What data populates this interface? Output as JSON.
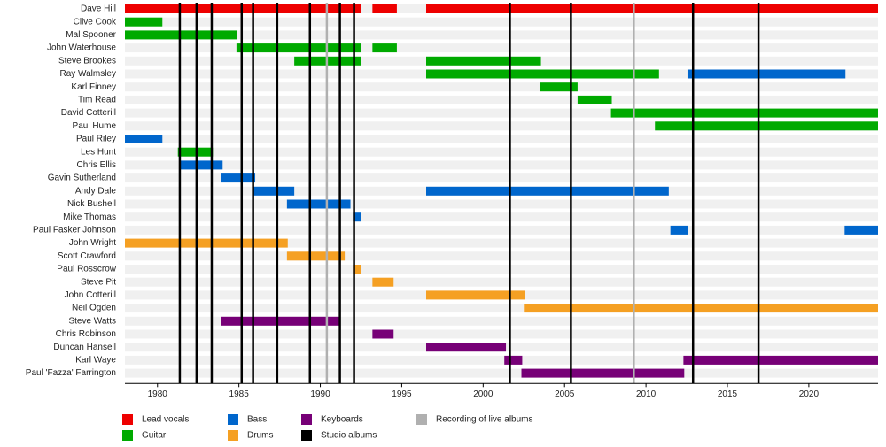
{
  "chart_data": {
    "type": "timeline",
    "xlim": [
      1978,
      2024.25
    ],
    "xticks": [
      1980,
      1985,
      1990,
      1995,
      2000,
      2005,
      2010,
      2015,
      2020
    ],
    "roles": [
      {
        "name": "Lead vocals",
        "color": "#ee0000"
      },
      {
        "name": "Guitar",
        "color": "#00aa00"
      },
      {
        "name": "Bass",
        "color": "#0066cc"
      },
      {
        "name": "Drums",
        "color": "#f5a023"
      },
      {
        "name": "Keyboards",
        "color": "#770077"
      }
    ],
    "events": [
      {
        "name": "Studio albums",
        "color": "#000000",
        "x": [
          1981.37,
          1982.4,
          1983.33,
          1985.17,
          1985.87,
          1987.35,
          1989.36,
          1991.2,
          1992.07,
          2001.64,
          2005.39,
          2012.89,
          2016.91
        ]
      },
      {
        "name": "Recording of live albums",
        "color": "#b0b0b0",
        "x": [
          1990.4,
          2009.25
        ]
      }
    ],
    "members": [
      {
        "name": "Dave Hill",
        "bars": [
          {
            "color": "#ee0000",
            "start": 1978,
            "end": 1992.5
          },
          {
            "color": "#ee0000",
            "start": 1993.2,
            "end": 1994.7
          },
          {
            "color": "#ee0000",
            "start": 1996.5,
            "end": 2024.25
          }
        ]
      },
      {
        "name": "Clive Cook",
        "bars": [
          {
            "color": "#00aa00",
            "start": 1978,
            "end": 1980.3
          }
        ]
      },
      {
        "name": "Mal Spooner",
        "bars": [
          {
            "color": "#00aa00",
            "start": 1978,
            "end": 1984.9
          }
        ]
      },
      {
        "name": "John Waterhouse",
        "bars": [
          {
            "color": "#00aa00",
            "start": 1984.85,
            "end": 1992.5
          },
          {
            "color": "#00aa00",
            "start": 1993.2,
            "end": 1994.7
          }
        ]
      },
      {
        "name": "Steve Brookes",
        "bars": [
          {
            "color": "#00aa00",
            "start": 1988.4,
            "end": 1992.5
          },
          {
            "color": "#00aa00",
            "start": 1996.5,
            "end": 2003.55
          }
        ]
      },
      {
        "name": "Ray Walmsley",
        "bars": [
          {
            "color": "#00aa00",
            "start": 1996.5,
            "end": 2010.8
          },
          {
            "color": "#0066cc",
            "start": 2012.55,
            "end": 2022.25
          }
        ]
      },
      {
        "name": "Karl Finney",
        "bars": [
          {
            "color": "#00aa00",
            "start": 2003.5,
            "end": 2005.8
          }
        ]
      },
      {
        "name": "Tim Read",
        "bars": [
          {
            "color": "#00aa00",
            "start": 2005.8,
            "end": 2007.9
          }
        ]
      },
      {
        "name": "David Cotterill",
        "bars": [
          {
            "color": "#00aa00",
            "start": 2007.85,
            "end": 2024.25
          }
        ]
      },
      {
        "name": "Paul Hume",
        "bars": [
          {
            "color": "#00aa00",
            "start": 2010.55,
            "end": 2024.25
          }
        ]
      },
      {
        "name": "Paul Riley",
        "bars": [
          {
            "color": "#0066cc",
            "start": 1978,
            "end": 1980.3
          }
        ]
      },
      {
        "name": "Les Hunt",
        "bars": [
          {
            "color": "#00aa00",
            "start": 1981.25,
            "end": 1983.4
          }
        ]
      },
      {
        "name": "Chris Ellis",
        "bars": [
          {
            "color": "#0066cc",
            "start": 1981.4,
            "end": 1984
          }
        ]
      },
      {
        "name": "Gavin Sutherland",
        "bars": [
          {
            "color": "#0066cc",
            "start": 1983.9,
            "end": 1986
          }
        ]
      },
      {
        "name": "Andy Dale",
        "bars": [
          {
            "color": "#0066cc",
            "start": 1985.9,
            "end": 1988.4
          },
          {
            "color": "#0066cc",
            "start": 1996.5,
            "end": 2011.4
          }
        ]
      },
      {
        "name": "Nick Bushell",
        "bars": [
          {
            "color": "#0066cc",
            "start": 1987.95,
            "end": 1991.85
          }
        ]
      },
      {
        "name": "Mike Thomas",
        "bars": [
          {
            "color": "#0066cc",
            "start": 1992,
            "end": 1992.5
          }
        ]
      },
      {
        "name": "Paul Fasker Johnson",
        "bars": [
          {
            "color": "#0066cc",
            "start": 2011.5,
            "end": 2012.6
          },
          {
            "color": "#0066cc",
            "start": 2022.2,
            "end": 2024.25
          }
        ]
      },
      {
        "name": "John Wright",
        "bars": [
          {
            "color": "#f5a023",
            "start": 1978,
            "end": 1988
          }
        ]
      },
      {
        "name": "Scott Crawford",
        "bars": [
          {
            "color": "#f5a023",
            "start": 1987.95,
            "end": 1991.5
          }
        ]
      },
      {
        "name": "Paul Rosscrow",
        "bars": [
          {
            "color": "#f5a023",
            "start": 1992,
            "end": 1992.5
          }
        ]
      },
      {
        "name": "Steve Pit",
        "bars": [
          {
            "color": "#f5a023",
            "start": 1993.2,
            "end": 1994.5
          }
        ]
      },
      {
        "name": "John Cotterill",
        "bars": [
          {
            "color": "#f5a023",
            "start": 1996.5,
            "end": 2002.55
          }
        ]
      },
      {
        "name": "Neil Ogden",
        "bars": [
          {
            "color": "#f5a023",
            "start": 2002.5,
            "end": 2024.25
          }
        ]
      },
      {
        "name": "Steve Watts",
        "bars": [
          {
            "color": "#770077",
            "start": 1983.9,
            "end": 1991.2
          }
        ]
      },
      {
        "name": "Chris Robinson",
        "bars": [
          {
            "color": "#770077",
            "start": 1993.2,
            "end": 1994.5
          }
        ]
      },
      {
        "name": "Duncan Hansell",
        "bars": [
          {
            "color": "#770077",
            "start": 1996.5,
            "end": 2001.4
          }
        ]
      },
      {
        "name": "Karl Waye",
        "bars": [
          {
            "color": "#770077",
            "start": 2001.3,
            "end": 2002.4
          },
          {
            "color": "#770077",
            "start": 2012.3,
            "end": 2024.25
          }
        ]
      },
      {
        "name": "Paul 'Fazza' Farrington",
        "bars": [
          {
            "color": "#770077",
            "start": 2002.35,
            "end": 2012.35
          }
        ]
      }
    ]
  }
}
